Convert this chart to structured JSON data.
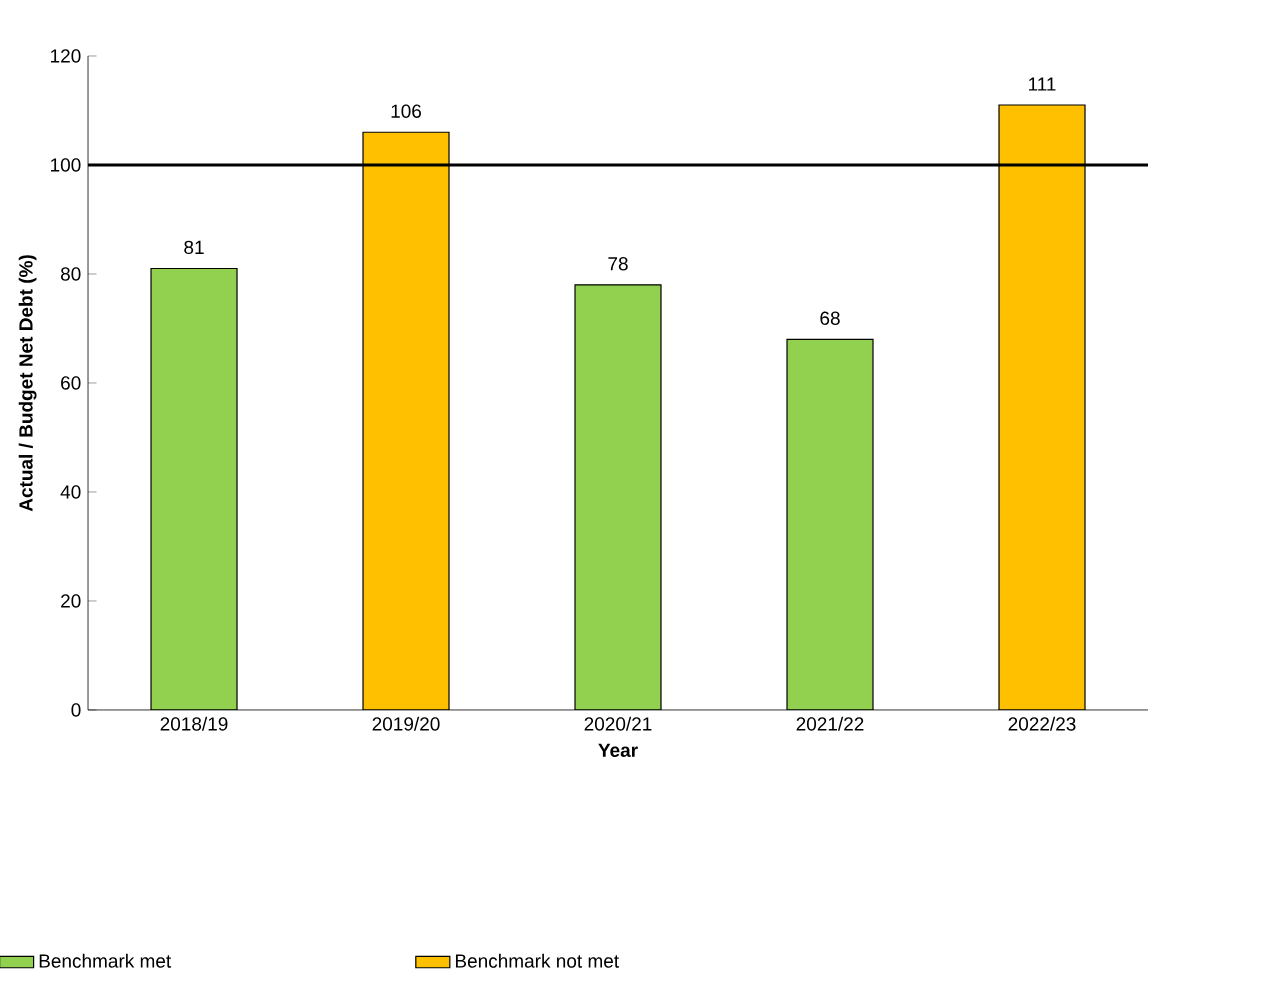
{
  "chart_data": {
    "type": "bar",
    "xlabel": "Year",
    "ylabel": "Actual / Budget Net Debt (%)",
    "categories": [
      "2018/19",
      "2019/20",
      "2020/21",
      "2021/22",
      "2022/23"
    ],
    "series": [
      {
        "name": "Benchmark met",
        "color": "#92d050",
        "values": [
          81,
          null,
          78,
          68,
          null
        ]
      },
      {
        "name": "Benchmark not met",
        "color": "#ffc000",
        "values": [
          null,
          106,
          null,
          null,
          111
        ]
      }
    ],
    "ylim": [
      0,
      120
    ],
    "yticks": [
      0,
      20,
      40,
      60,
      80,
      100,
      120
    ],
    "ref_lines": [
      {
        "axis": "y",
        "value": 100,
        "color": "#000000",
        "line_style": "solid"
      }
    ],
    "data_labels": true,
    "grid": false,
    "legend": "bottom"
  }
}
